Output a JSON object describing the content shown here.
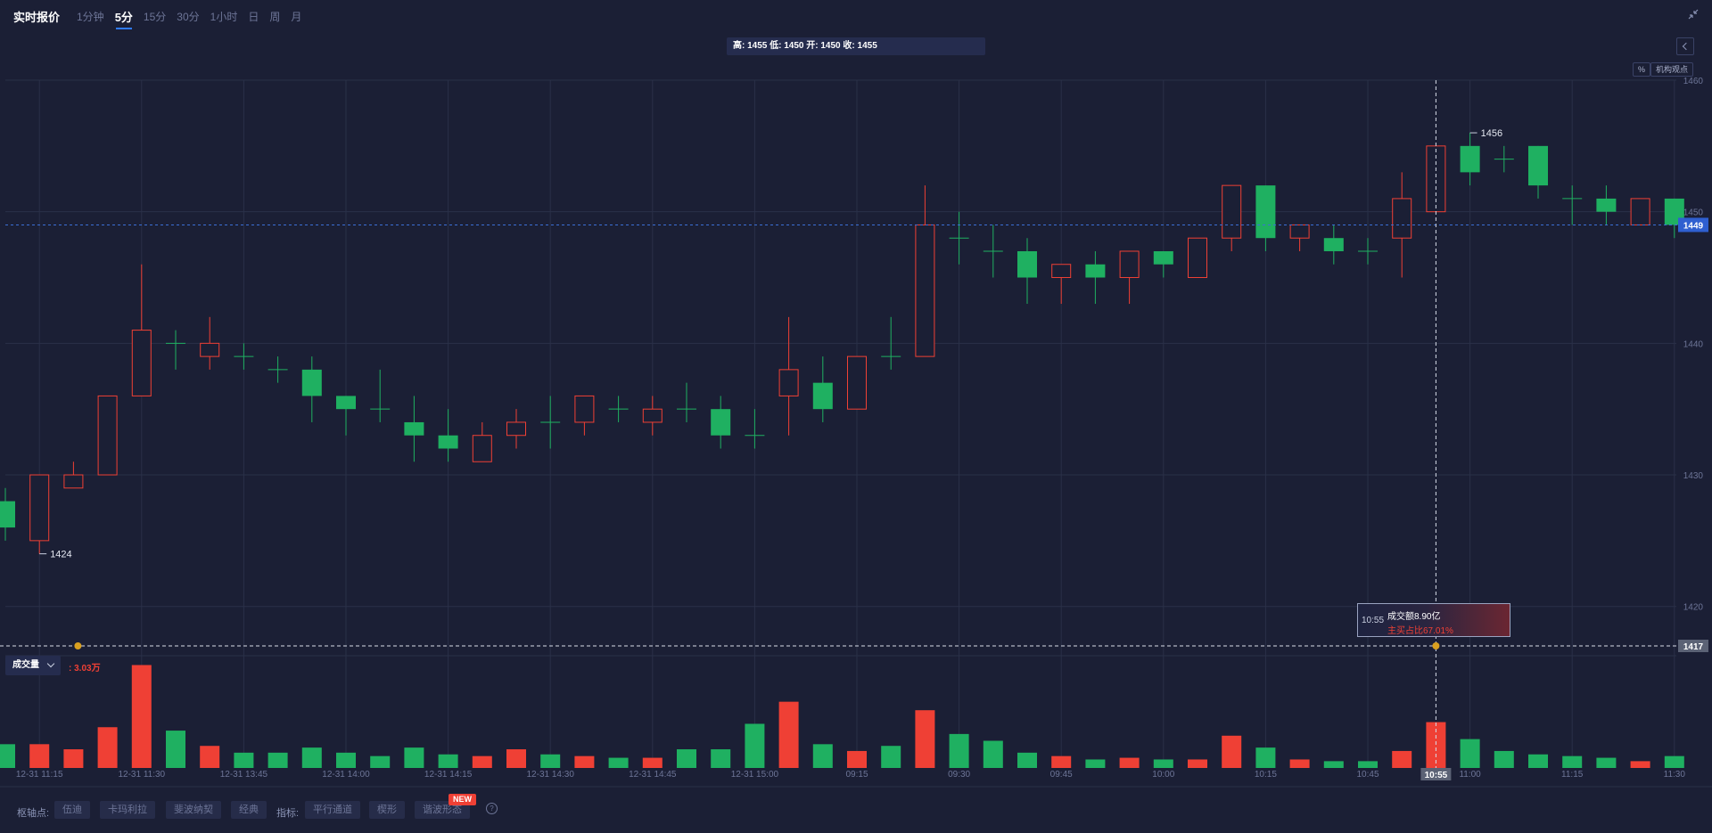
{
  "header": {
    "title": "实时报价",
    "periods": [
      "1分钟",
      "5分",
      "15分",
      "30分",
      "1小时",
      "日",
      "周",
      "月"
    ],
    "active_period": "5分"
  },
  "info_bar": "高: 1455 低: 1450 开: 1450 收: 1455",
  "buttons": {
    "percent": "%",
    "views": "机构观点"
  },
  "volume_panel": {
    "selector": "成交量",
    "value": ": 3.03万"
  },
  "tooltip": {
    "time": "10:55",
    "amount": "成交额8.90亿",
    "ratio": "主买占比67.01%"
  },
  "bottom": {
    "pivot_label": "枢轴点:",
    "pivots": [
      "伍迪",
      "卡玛利拉",
      "斐波纳契",
      "经典"
    ],
    "indicator_label": "指标:",
    "indicators": [
      "平行通道",
      "楔形",
      "谐波形态"
    ],
    "new_badge": "NEW",
    "help": "?"
  },
  "colors": {
    "up": "#ef4035",
    "down": "#1fb061",
    "background": "#1b1f35",
    "grid": "#2a3048"
  },
  "chart_data": {
    "type": "candlestick",
    "y_ticks": [
      1420,
      1430,
      1440,
      1450,
      1460
    ],
    "ylim": [
      1417,
      1460
    ],
    "current_price": "1449",
    "crosshair_price": "1417",
    "crosshair_time": "10:55",
    "max_label": "1456",
    "min_label": "1424",
    "x_ticks": [
      "12-31 11:15",
      "12-31 11:30",
      "12-31 13:45",
      "12-31 14:00",
      "12-31 14:15",
      "12-31 14:30",
      "12-31 14:45",
      "12-31 15:00",
      "09:15",
      "09:30",
      "09:45",
      "10:00",
      "10:15",
      "10:45",
      "11:00",
      "11:15",
      "11:30"
    ],
    "x_tick_index": [
      1,
      4,
      7,
      10,
      13,
      16,
      19,
      22,
      25,
      28,
      31,
      34,
      37,
      40,
      43,
      46,
      49
    ],
    "candles": [
      {
        "o": 1428,
        "h": 1429,
        "l": 1425,
        "c": 1426
      },
      {
        "o": 1425,
        "h": 1430,
        "l": 1424,
        "c": 1430
      },
      {
        "o": 1429,
        "h": 1431,
        "l": 1429,
        "c": 1430
      },
      {
        "o": 1430,
        "h": 1436,
        "l": 1430,
        "c": 1436
      },
      {
        "o": 1436,
        "h": 1446,
        "l": 1436,
        "c": 1441
      },
      {
        "o": 1440,
        "h": 1441,
        "l": 1438,
        "c": 1440
      },
      {
        "o": 1439,
        "h": 1442,
        "l": 1438,
        "c": 1440
      },
      {
        "o": 1439,
        "h": 1440,
        "l": 1438,
        "c": 1439
      },
      {
        "o": 1438,
        "h": 1439,
        "l": 1437,
        "c": 1438
      },
      {
        "o": 1438,
        "h": 1439,
        "l": 1434,
        "c": 1436
      },
      {
        "o": 1436,
        "h": 1436,
        "l": 1433,
        "c": 1435
      },
      {
        "o": 1435,
        "h": 1438,
        "l": 1434,
        "c": 1435
      },
      {
        "o": 1434,
        "h": 1436,
        "l": 1431,
        "c": 1433
      },
      {
        "o": 1433,
        "h": 1435,
        "l": 1431,
        "c": 1432
      },
      {
        "o": 1431,
        "h": 1434,
        "l": 1431,
        "c": 1433
      },
      {
        "o": 1433,
        "h": 1435,
        "l": 1432,
        "c": 1434
      },
      {
        "o": 1434,
        "h": 1436,
        "l": 1432,
        "c": 1434
      },
      {
        "o": 1434,
        "h": 1436,
        "l": 1433,
        "c": 1436
      },
      {
        "o": 1435,
        "h": 1436,
        "l": 1434,
        "c": 1435
      },
      {
        "o": 1434,
        "h": 1436,
        "l": 1433,
        "c": 1435
      },
      {
        "o": 1435,
        "h": 1437,
        "l": 1434,
        "c": 1435
      },
      {
        "o": 1435,
        "h": 1436,
        "l": 1432,
        "c": 1433
      },
      {
        "o": 1433,
        "h": 1435,
        "l": 1432,
        "c": 1433
      },
      {
        "o": 1436,
        "h": 1442,
        "l": 1433,
        "c": 1438
      },
      {
        "o": 1437,
        "h": 1439,
        "l": 1434,
        "c": 1435
      },
      {
        "o": 1435,
        "h": 1439,
        "l": 1435,
        "c": 1439
      },
      {
        "o": 1439,
        "h": 1442,
        "l": 1438,
        "c": 1439
      },
      {
        "o": 1439,
        "h": 1452,
        "l": 1439,
        "c": 1449
      },
      {
        "o": 1448,
        "h": 1450,
        "l": 1446,
        "c": 1448
      },
      {
        "o": 1447,
        "h": 1449,
        "l": 1445,
        "c": 1447
      },
      {
        "o": 1447,
        "h": 1448,
        "l": 1443,
        "c": 1445
      },
      {
        "o": 1445,
        "h": 1446,
        "l": 1443,
        "c": 1446
      },
      {
        "o": 1446,
        "h": 1447,
        "l": 1443,
        "c": 1445
      },
      {
        "o": 1445,
        "h": 1447,
        "l": 1443,
        "c": 1447
      },
      {
        "o": 1447,
        "h": 1447,
        "l": 1445,
        "c": 1446
      },
      {
        "o": 1445,
        "h": 1448,
        "l": 1445,
        "c": 1448
      },
      {
        "o": 1448,
        "h": 1452,
        "l": 1447,
        "c": 1452
      },
      {
        "o": 1452,
        "h": 1452,
        "l": 1447,
        "c": 1448
      },
      {
        "o": 1448,
        "h": 1449,
        "l": 1447,
        "c": 1449
      },
      {
        "o": 1448,
        "h": 1449,
        "l": 1446,
        "c": 1447
      },
      {
        "o": 1447,
        "h": 1448,
        "l": 1446,
        "c": 1447
      },
      {
        "o": 1448,
        "h": 1453,
        "l": 1445,
        "c": 1451
      },
      {
        "o": 1450,
        "h": 1455,
        "l": 1450,
        "c": 1455
      },
      {
        "o": 1455,
        "h": 1456,
        "l": 1452,
        "c": 1453
      },
      {
        "o": 1454,
        "h": 1455,
        "l": 1453,
        "c": 1454
      },
      {
        "o": 1455,
        "h": 1455,
        "l": 1451,
        "c": 1452
      },
      {
        "o": 1451,
        "h": 1452,
        "l": 1449,
        "c": 1451
      },
      {
        "o": 1451,
        "h": 1452,
        "l": 1449,
        "c": 1450
      },
      {
        "o": 1449,
        "h": 1451,
        "l": 1449,
        "c": 1451
      },
      {
        "o": 1451,
        "h": 1451,
        "l": 1448,
        "c": 1449
      }
    ],
    "volume_ylim": [
      0,
      3.2
    ],
    "volumes": [
      0.7,
      0.7,
      0.55,
      1.2,
      3.03,
      1.1,
      0.65,
      0.45,
      0.45,
      0.6,
      0.45,
      0.35,
      0.6,
      0.4,
      0.35,
      0.55,
      0.4,
      0.35,
      0.3,
      0.3,
      0.55,
      0.55,
      1.3,
      1.95,
      0.7,
      0.5,
      0.65,
      1.7,
      1.0,
      0.8,
      0.45,
      0.35,
      0.25,
      0.3,
      0.25,
      0.25,
      0.95,
      0.6,
      0.25,
      0.2,
      0.2,
      0.5,
      1.35,
      0.85,
      0.5,
      0.4,
      0.35,
      0.3,
      0.2,
      0.35
    ]
  }
}
